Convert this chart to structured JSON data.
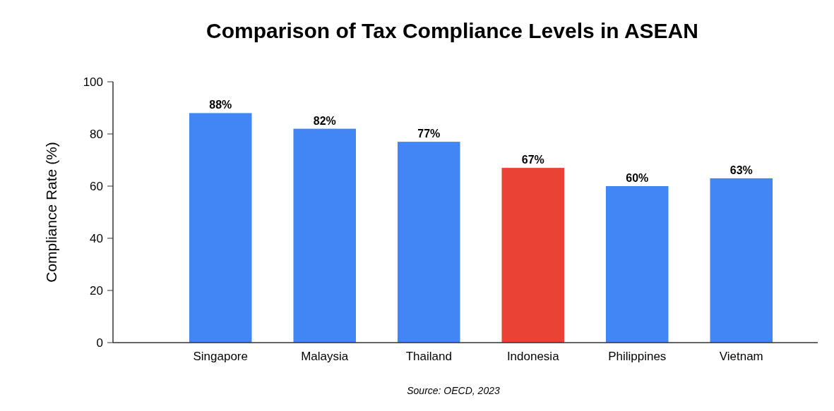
{
  "chart_data": {
    "type": "bar",
    "title": "Comparison of Tax Compliance Levels in ASEAN",
    "ylabel": "Compliance Rate (%)",
    "categories": [
      "Singapore",
      "Malaysia",
      "Thailand",
      "Indonesia",
      "Philippines",
      "Vietnam"
    ],
    "values": [
      88,
      82,
      77,
      67,
      60,
      63
    ],
    "value_labels": [
      "88%",
      "82%",
      "77%",
      "67%",
      "60%",
      "63%"
    ],
    "colors": [
      "#4285f4",
      "#4285f4",
      "#4285f4",
      "#ea4335",
      "#4285f4",
      "#4285f4"
    ],
    "ylim": [
      0,
      100
    ],
    "yticks": [
      0,
      20,
      40,
      60,
      80,
      100
    ],
    "grid": false,
    "annotations": [
      "Source: OECD, 2023"
    ]
  }
}
